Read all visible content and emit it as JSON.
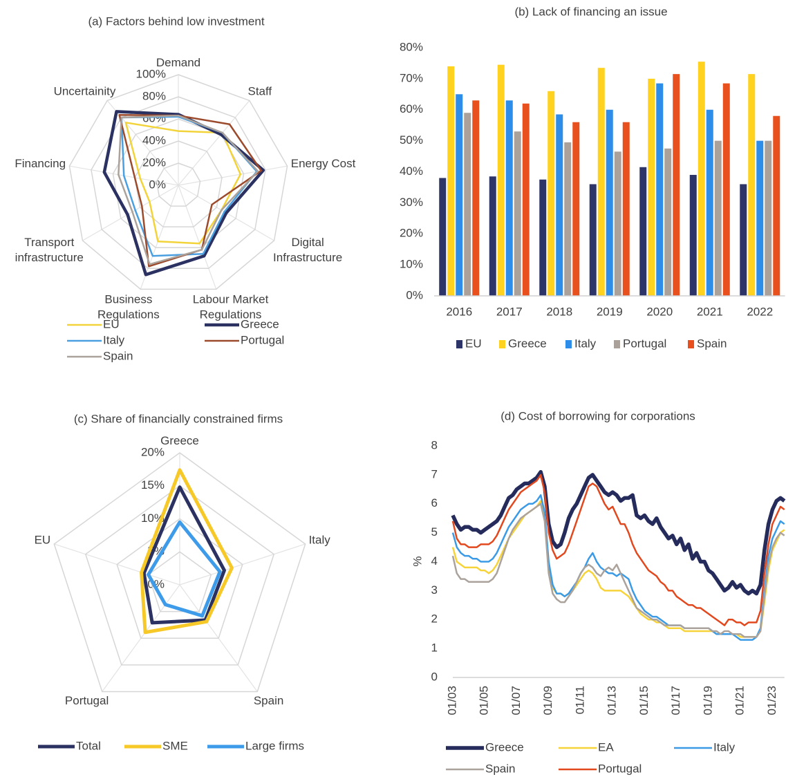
{
  "chart_data": [
    {
      "type": "radar",
      "title": "(a) Factors behind low investment",
      "categories": [
        "Demand",
        "Staff",
        "Energy Cost",
        "Digital\nInfrastructure",
        "Labour Market\nRegulations",
        "Business\nRegulations",
        "Transport\ninfrastructure",
        "Financing",
        "Uncertainity"
      ],
      "ylim": [
        0,
        100
      ],
      "yticks": [
        {
          "value": 0,
          "label": "0%"
        },
        {
          "value": 20,
          "label": "20%"
        },
        {
          "value": 40,
          "label": "40%"
        },
        {
          "value": 60,
          "label": "60%"
        },
        {
          "value": 80,
          "label": "80%"
        },
        {
          "value": 100,
          "label": "100%"
        }
      ],
      "series": [
        {
          "name": "EU",
          "color": "#f2d43a",
          "values": [
            49,
            62,
            57,
            45,
            56,
            54,
            30,
            35,
            74
          ]
        },
        {
          "name": "Greece",
          "color": "#2b3262",
          "values": [
            64,
            60,
            78,
            50,
            68,
            86,
            53,
            68,
            87
          ]
        },
        {
          "name": "Italy",
          "color": "#4a9fe0",
          "values": [
            62,
            62,
            72,
            48,
            66,
            68,
            45,
            50,
            80
          ]
        },
        {
          "name": "Portugal",
          "color": "#9c4a2c",
          "values": [
            63,
            72,
            76,
            35,
            62,
            78,
            38,
            40,
            83
          ]
        },
        {
          "name": "Spain",
          "color": "#aaa29b",
          "values": [
            63,
            62,
            73,
            45,
            62,
            76,
            48,
            55,
            80
          ]
        }
      ]
    },
    {
      "type": "bar",
      "title": "(b) Lack of financing an issue",
      "categories": [
        "2016",
        "2017",
        "2018",
        "2019",
        "2020",
        "2021",
        "2022"
      ],
      "ylim": [
        0,
        80
      ],
      "yticks": [
        {
          "value": 0,
          "label": "0%"
        },
        {
          "value": 10,
          "label": "10%"
        },
        {
          "value": 20,
          "label": "20%"
        },
        {
          "value": 30,
          "label": "30%"
        },
        {
          "value": 40,
          "label": "40%"
        },
        {
          "value": 50,
          "label": "50%"
        },
        {
          "value": 60,
          "label": "60%"
        },
        {
          "value": 70,
          "label": "70%"
        },
        {
          "value": 80,
          "label": "80%"
        }
      ],
      "series": [
        {
          "name": "EU",
          "color": "#2d3468",
          "values": [
            38,
            38.5,
            37.5,
            36,
            41.5,
            39,
            36
          ]
        },
        {
          "name": "Greece",
          "color": "#ffd21f",
          "values": [
            74,
            74.5,
            66,
            73.5,
            70,
            75.5,
            71.5
          ]
        },
        {
          "name": "Italy",
          "color": "#2d8de8",
          "values": [
            65,
            63,
            58.5,
            60,
            68.5,
            60,
            50
          ]
        },
        {
          "name": "Portugal",
          "color": "#aaa19b",
          "values": [
            59,
            53,
            49.5,
            46.5,
            47.5,
            50,
            50
          ]
        },
        {
          "name": "Spain",
          "color": "#e8501e",
          "values": [
            63,
            62,
            56,
            56,
            71.5,
            68.5,
            58
          ]
        }
      ]
    },
    {
      "type": "radar",
      "title": "(c) Share of financially constrained firms",
      "categories": [
        "Greece",
        "Italy",
        "Spain",
        "Portugal",
        "EU"
      ],
      "ylim": [
        0,
        20
      ],
      "yticks": [
        {
          "value": 0,
          "label": "0%"
        },
        {
          "value": 5,
          "label": "5%"
        },
        {
          "value": 10,
          "label": "10%"
        },
        {
          "value": 15,
          "label": "15%"
        },
        {
          "value": 20,
          "label": "20%"
        }
      ],
      "series": [
        {
          "name": "Total",
          "color": "#2b3262",
          "values": [
            14.8,
            7.1,
            6.6,
            7.1,
            5.7
          ]
        },
        {
          "name": "SME",
          "color": "#f7c928",
          "values": [
            17.4,
            8.3,
            6.9,
            8.9,
            6.1
          ]
        },
        {
          "name": "Large firms",
          "color": "#3d9be9",
          "values": [
            9.5,
            6.4,
            5.8,
            3.7,
            5.0
          ]
        }
      ]
    },
    {
      "type": "line",
      "title": "(d) Cost of borrowing for corporations",
      "y_label": "%",
      "x": [
        "01/03",
        "04/03",
        "07/03",
        "10/03",
        "01/04",
        "04/04",
        "07/04",
        "10/04",
        "01/05",
        "04/05",
        "07/05",
        "10/05",
        "01/06",
        "04/06",
        "07/06",
        "10/06",
        "01/07",
        "04/07",
        "07/07",
        "10/07",
        "01/08",
        "04/08",
        "07/08",
        "10/08",
        "01/09",
        "04/09",
        "07/09",
        "10/09",
        "01/10",
        "04/10",
        "07/10",
        "10/10",
        "01/11",
        "04/11",
        "07/11",
        "10/11",
        "01/12",
        "04/12",
        "07/12",
        "10/12",
        "01/13",
        "04/13",
        "07/13",
        "10/13",
        "01/14",
        "04/14",
        "07/14",
        "10/14",
        "01/15",
        "04/15",
        "07/15",
        "10/15",
        "01/16",
        "04/16",
        "07/16",
        "10/16",
        "01/17",
        "04/17",
        "07/17",
        "10/17",
        "01/18",
        "04/18",
        "07/18",
        "10/18",
        "01/19",
        "04/19",
        "07/19",
        "10/19",
        "01/20",
        "04/20",
        "07/20",
        "10/20",
        "01/21",
        "04/21",
        "07/21",
        "10/21",
        "01/22",
        "04/22",
        "07/22",
        "10/22",
        "01/23",
        "04/23",
        "07/23",
        "10/23"
      ],
      "xticks": [
        "01/03",
        "01/05",
        "01/07",
        "01/09",
        "01/11",
        "01/13",
        "01/15",
        "01/17",
        "01/19",
        "01/21",
        "01/23"
      ],
      "ylim": [
        0,
        8
      ],
      "yticks": [
        0,
        1,
        2,
        3,
        4,
        5,
        6,
        7,
        8
      ],
      "series": [
        {
          "name": "Greece",
          "color": "#252c5c",
          "values": [
            5.6,
            5.3,
            5.1,
            5.2,
            5.2,
            5.1,
            5.1,
            5.0,
            5.1,
            5.2,
            5.3,
            5.4,
            5.6,
            5.9,
            6.2,
            6.3,
            6.5,
            6.6,
            6.7,
            6.7,
            6.8,
            6.9,
            7.1,
            6.6,
            5.3,
            4.7,
            4.5,
            4.6,
            5.0,
            5.5,
            5.8,
            6.0,
            6.3,
            6.6,
            6.9,
            7.0,
            6.8,
            6.6,
            6.4,
            6.3,
            6.4,
            6.3,
            6.1,
            6.2,
            6.2,
            6.3,
            5.6,
            5.5,
            5.6,
            5.4,
            5.3,
            5.5,
            5.2,
            5.0,
            4.8,
            4.9,
            4.6,
            4.8,
            4.4,
            4.6,
            4.1,
            4.3,
            4.0,
            4.0,
            3.7,
            3.6,
            3.4,
            3.2,
            3.0,
            3.1,
            3.3,
            3.1,
            3.2,
            3.0,
            2.9,
            3.0,
            2.9,
            3.2,
            4.4,
            5.3,
            5.8,
            6.1,
            6.2,
            6.1
          ]
        },
        {
          "name": "EA",
          "color": "#f7d33a",
          "values": [
            4.5,
            4.0,
            3.9,
            3.8,
            3.8,
            3.8,
            3.8,
            3.7,
            3.7,
            3.6,
            3.7,
            3.9,
            4.2,
            4.5,
            4.8,
            5.0,
            5.2,
            5.4,
            5.6,
            5.7,
            5.8,
            5.9,
            6.1,
            5.5,
            3.7,
            3.1,
            2.9,
            2.9,
            2.8,
            2.9,
            3.0,
            3.2,
            3.4,
            3.6,
            3.7,
            3.6,
            3.4,
            3.1,
            3.0,
            3.0,
            3.0,
            3.0,
            3.0,
            2.9,
            2.8,
            2.6,
            2.4,
            2.2,
            2.1,
            2.0,
            2.0,
            1.9,
            1.9,
            1.8,
            1.7,
            1.7,
            1.7,
            1.7,
            1.6,
            1.6,
            1.6,
            1.6,
            1.6,
            1.6,
            1.6,
            1.6,
            1.5,
            1.5,
            1.5,
            1.5,
            1.5,
            1.5,
            1.4,
            1.4,
            1.4,
            1.4,
            1.4,
            1.6,
            2.6,
            3.7,
            4.4,
            4.7,
            5.0,
            5.1
          ]
        },
        {
          "name": "Italy",
          "color": "#3a9ae6",
          "values": [
            5.0,
            4.5,
            4.3,
            4.2,
            4.2,
            4.1,
            4.1,
            4.0,
            4.0,
            4.0,
            4.1,
            4.3,
            4.6,
            4.9,
            5.2,
            5.4,
            5.6,
            5.8,
            5.9,
            6.0,
            6.0,
            6.1,
            6.3,
            5.7,
            4.0,
            3.2,
            2.9,
            2.9,
            2.8,
            2.9,
            3.1,
            3.3,
            3.6,
            3.8,
            4.1,
            4.3,
            4.0,
            3.8,
            3.7,
            3.6,
            3.6,
            3.5,
            3.6,
            3.5,
            3.4,
            3.0,
            2.7,
            2.5,
            2.3,
            2.2,
            2.1,
            2.1,
            2.0,
            1.9,
            1.8,
            1.8,
            1.8,
            1.8,
            1.7,
            1.7,
            1.7,
            1.7,
            1.7,
            1.7,
            1.7,
            1.6,
            1.5,
            1.5,
            1.5,
            1.5,
            1.5,
            1.4,
            1.3,
            1.3,
            1.3,
            1.3,
            1.4,
            1.7,
            3.0,
            4.2,
            4.8,
            5.1,
            5.4,
            5.3
          ]
        },
        {
          "name": "Spain",
          "color": "#aaa29b",
          "values": [
            4.2,
            3.6,
            3.4,
            3.4,
            3.3,
            3.3,
            3.3,
            3.3,
            3.3,
            3.3,
            3.4,
            3.6,
            4.0,
            4.4,
            4.8,
            5.1,
            5.3,
            5.5,
            5.6,
            5.7,
            5.8,
            5.9,
            6.0,
            5.4,
            3.6,
            2.9,
            2.7,
            2.6,
            2.6,
            2.8,
            3.0,
            3.3,
            3.6,
            3.8,
            3.9,
            3.8,
            3.6,
            3.5,
            3.7,
            3.8,
            3.7,
            3.9,
            3.6,
            3.3,
            3.0,
            2.7,
            2.4,
            2.3,
            2.2,
            2.1,
            2.0,
            2.0,
            1.9,
            1.8,
            1.8,
            1.8,
            1.8,
            1.8,
            1.7,
            1.7,
            1.7,
            1.7,
            1.7,
            1.7,
            1.7,
            1.6,
            1.6,
            1.5,
            1.6,
            1.6,
            1.5,
            1.5,
            1.5,
            1.4,
            1.4,
            1.4,
            1.4,
            1.6,
            2.8,
            3.9,
            4.5,
            4.8,
            5.0,
            4.9
          ]
        },
        {
          "name": "Portugal",
          "color": "#e2481e",
          "values": [
            5.4,
            4.8,
            4.6,
            4.6,
            4.5,
            4.5,
            4.5,
            4.6,
            4.6,
            4.6,
            4.7,
            4.9,
            5.2,
            5.5,
            5.8,
            6.0,
            6.2,
            6.4,
            6.5,
            6.6,
            6.7,
            6.8,
            7.0,
            6.4,
            5.0,
            4.4,
            4.1,
            4.2,
            4.3,
            4.6,
            5.0,
            5.4,
            5.8,
            6.2,
            6.6,
            6.7,
            6.6,
            6.3,
            6.0,
            5.8,
            5.9,
            5.6,
            5.3,
            5.3,
            5.0,
            4.6,
            4.3,
            4.1,
            3.9,
            3.7,
            3.6,
            3.5,
            3.3,
            3.2,
            3.0,
            3.0,
            2.8,
            2.7,
            2.6,
            2.5,
            2.5,
            2.4,
            2.4,
            2.3,
            2.2,
            2.1,
            2.0,
            1.9,
            1.8,
            2.0,
            2.0,
            1.9,
            1.9,
            1.8,
            1.9,
            1.9,
            1.9,
            2.3,
            3.6,
            4.6,
            5.3,
            5.6,
            5.9,
            5.8
          ]
        }
      ]
    }
  ]
}
